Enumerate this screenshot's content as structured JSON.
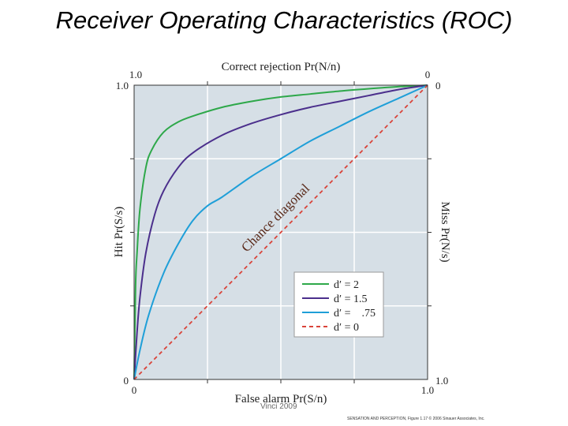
{
  "slide": {
    "title": "Receiver Operating Characteristics (ROC)",
    "credit": "Vinci 2009",
    "figure_source": "SENSATION AND PERCEPTION, Figure 1.17 © 2006 Sinauer Associates, Inc."
  },
  "chart_data": {
    "type": "line",
    "xlabel": "False alarm Pr(S/n)",
    "ylabel": "Hit Pr(S/s)",
    "top_label": "Correct rejection Pr(N/n)",
    "right_label": "Miss Pr(N/s)",
    "xlim": [
      0,
      1
    ],
    "ylim": [
      0,
      1
    ],
    "tick_labels": {
      "bottom": [
        "0",
        "1.0"
      ],
      "left": [
        "0",
        "1.0"
      ],
      "top": [
        "1.0",
        "0"
      ],
      "right": [
        "0",
        "1.0"
      ]
    },
    "grid": true,
    "background": "#d6dfe6",
    "diagonal_label": "Chance diagonal",
    "legend_position": "lower-right",
    "series": [
      {
        "name": "d′ = 2",
        "color": "#2ea84a",
        "dashed": false,
        "x": [
          0,
          0.005,
          0.01,
          0.02,
          0.04,
          0.06,
          0.1,
          0.15,
          0.2,
          0.3,
          0.4,
          0.5,
          0.6,
          0.7,
          0.8,
          0.9,
          1
        ],
        "y": [
          0,
          0.32,
          0.43,
          0.58,
          0.72,
          0.78,
          0.84,
          0.875,
          0.895,
          0.925,
          0.945,
          0.96,
          0.97,
          0.98,
          0.988,
          0.995,
          1
        ]
      },
      {
        "name": "d′ = 1.5",
        "color": "#4b2f8c",
        "dashed": false,
        "x": [
          0,
          0.01,
          0.02,
          0.04,
          0.07,
          0.1,
          0.15,
          0.2,
          0.3,
          0.4,
          0.5,
          0.6,
          0.7,
          0.8,
          0.9,
          1
        ],
        "y": [
          0,
          0.16,
          0.28,
          0.43,
          0.56,
          0.64,
          0.72,
          0.77,
          0.83,
          0.87,
          0.9,
          0.925,
          0.945,
          0.965,
          0.985,
          1
        ]
      },
      {
        "name": "d′ =    .75",
        "color": "#1f9fd8",
        "dashed": false,
        "x": [
          0,
          0.02,
          0.05,
          0.1,
          0.15,
          0.2,
          0.25,
          0.3,
          0.4,
          0.5,
          0.6,
          0.7,
          0.8,
          0.9,
          1
        ],
        "y": [
          0,
          0.1,
          0.22,
          0.36,
          0.46,
          0.54,
          0.59,
          0.62,
          0.69,
          0.75,
          0.81,
          0.86,
          0.91,
          0.955,
          1
        ]
      },
      {
        "name": "d′ = 0",
        "color": "#d9443a",
        "dashed": true,
        "x": [
          0,
          1
        ],
        "y": [
          0,
          1
        ]
      }
    ]
  }
}
